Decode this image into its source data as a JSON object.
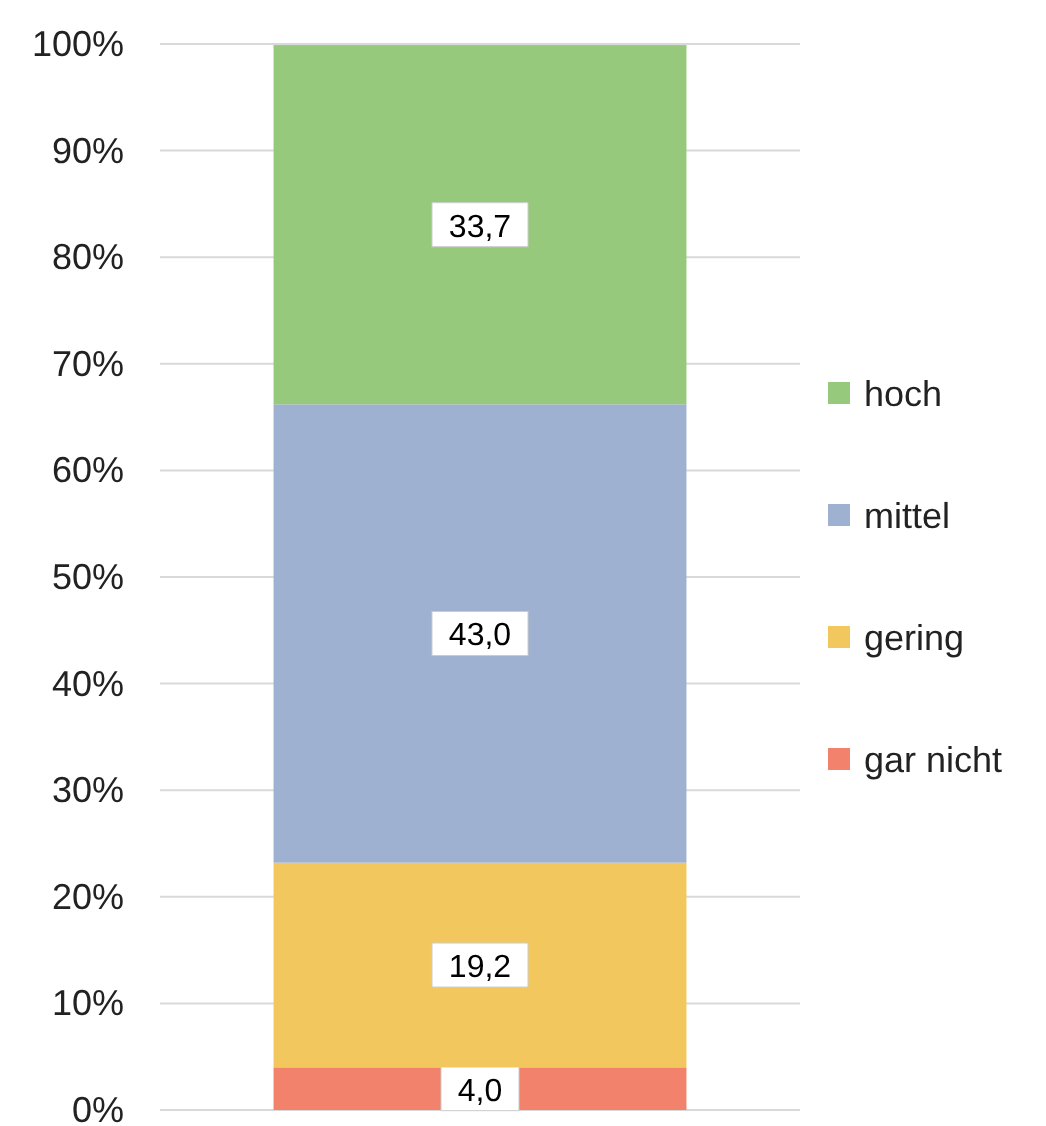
{
  "chart_data": {
    "type": "bar",
    "stacked": true,
    "categories": [
      null
    ],
    "series": [
      {
        "name": "gar nicht",
        "color": "#f2826b",
        "values": [
          4.0
        ],
        "value_labels": [
          "4,0"
        ]
      },
      {
        "name": "gering",
        "color": "#f2c85e",
        "values": [
          19.2
        ],
        "value_labels": [
          "19,2"
        ]
      },
      {
        "name": "mittel",
        "color": "#9fb1d1",
        "values": [
          43.0
        ],
        "value_labels": [
          "43,0"
        ]
      },
      {
        "name": "hoch",
        "color": "#97c97c",
        "values": [
          33.7
        ],
        "value_labels": [
          "33,7"
        ]
      }
    ],
    "ylim": [
      0,
      100
    ],
    "yticks": [
      {
        "value": 0,
        "label": "0%"
      },
      {
        "value": 10,
        "label": "10%"
      },
      {
        "value": 20,
        "label": "20%"
      },
      {
        "value": 30,
        "label": "30%"
      },
      {
        "value": 40,
        "label": "40%"
      },
      {
        "value": 50,
        "label": "50%"
      },
      {
        "value": 60,
        "label": "60%"
      },
      {
        "value": 70,
        "label": "70%"
      },
      {
        "value": 80,
        "label": "80%"
      },
      {
        "value": 90,
        "label": "90%"
      },
      {
        "value": 100,
        "label": "100%"
      }
    ],
    "grid": "y",
    "legend": "right"
  }
}
